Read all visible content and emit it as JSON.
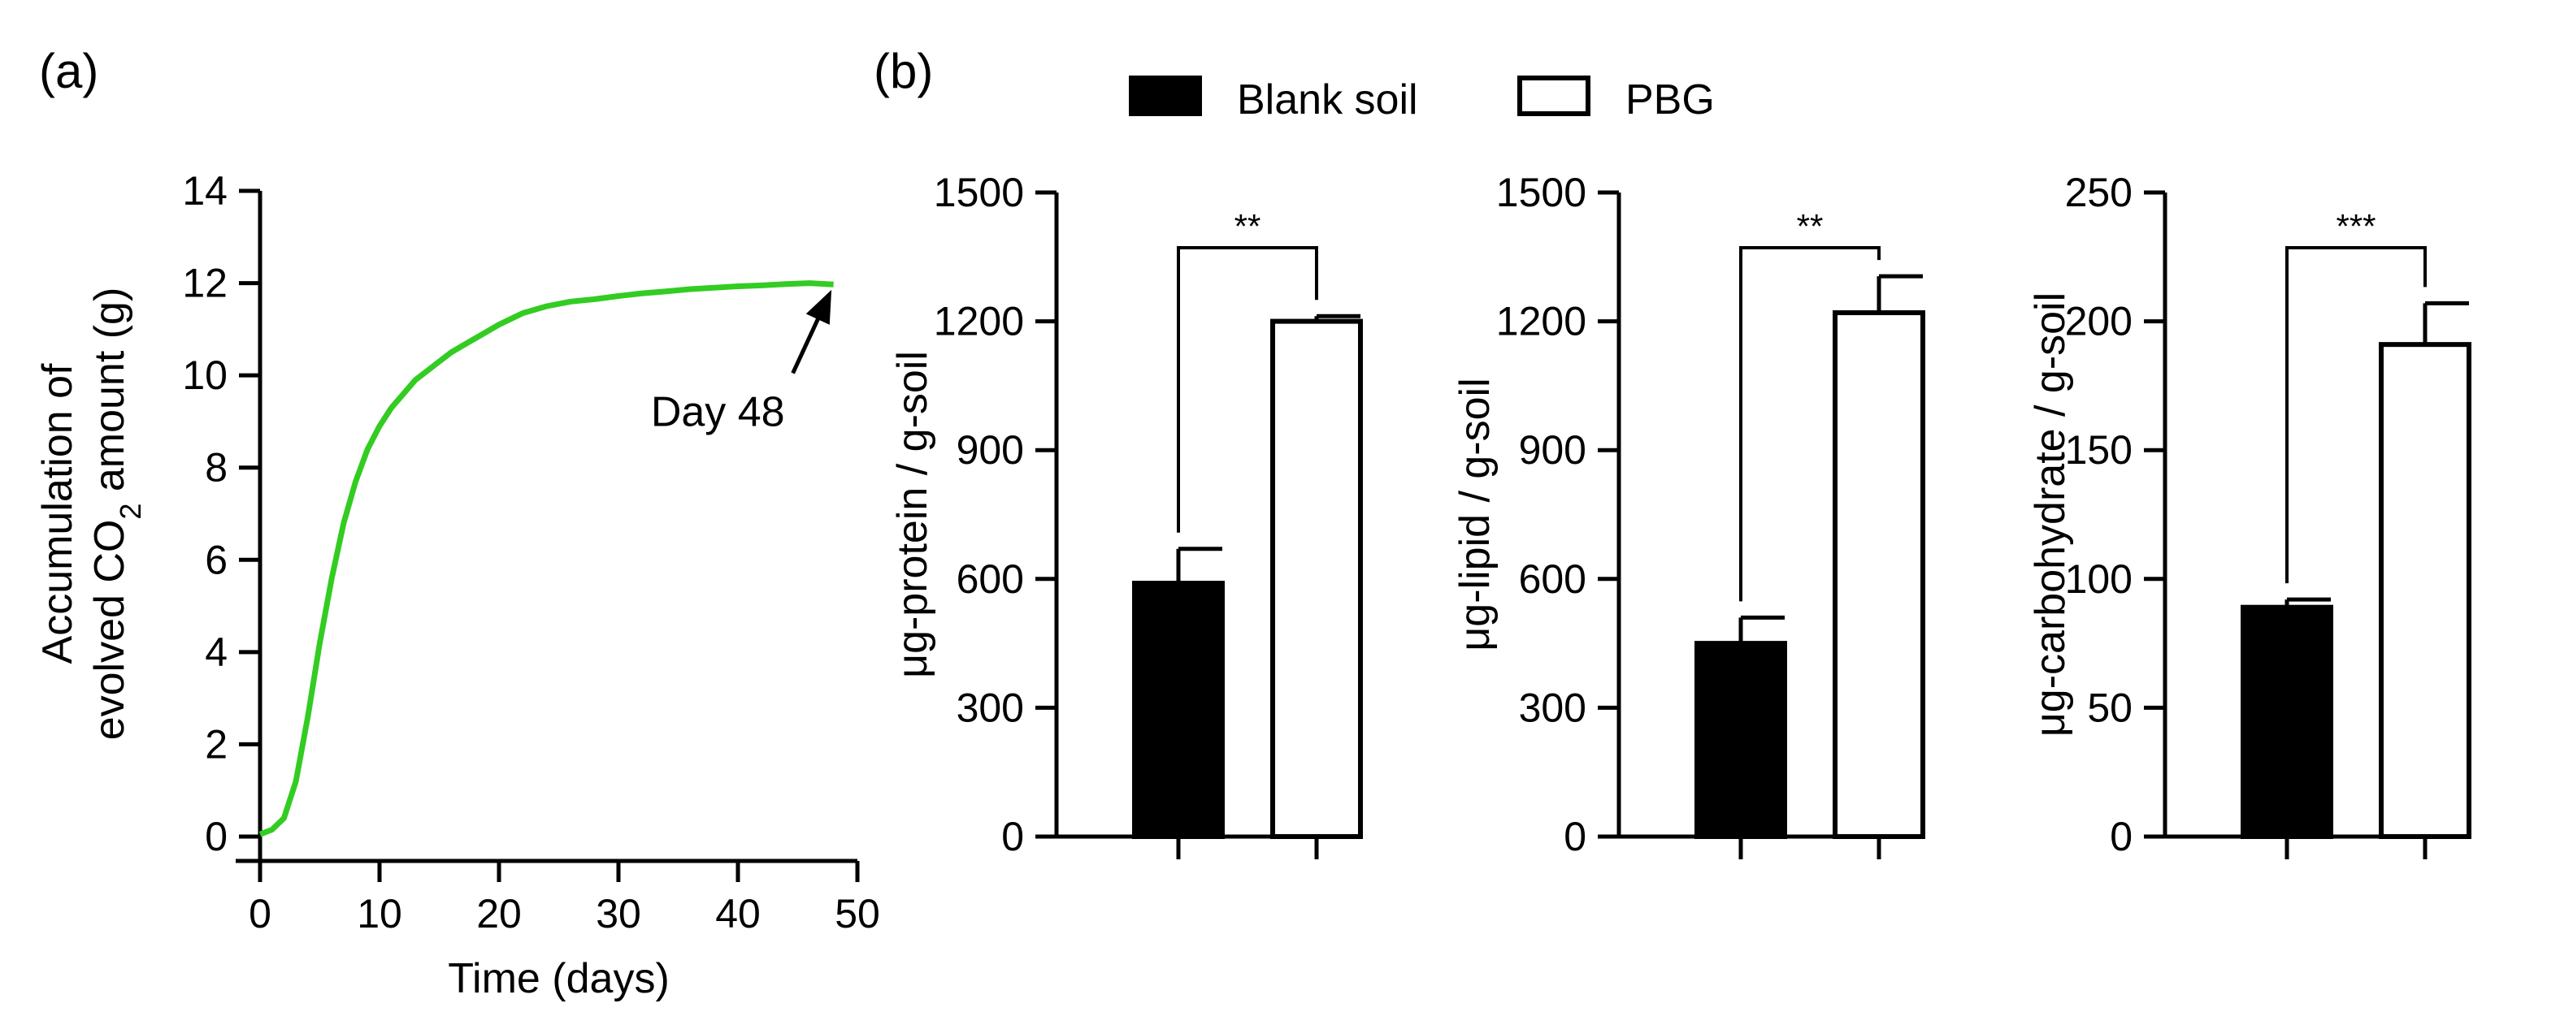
{
  "panel_labels": {
    "a": "(a)",
    "b": "(b)"
  },
  "legend": {
    "items": [
      {
        "label": "Blank soil",
        "fill": "#000000"
      },
      {
        "label": "PBG",
        "fill": "#ffffff"
      }
    ]
  },
  "colors": {
    "line": "#33cc22",
    "axis": "#000000"
  },
  "chart_data": [
    {
      "type": "line",
      "panel": "(a)",
      "xlabel": "Time (days)",
      "ylabel_line1": "Accumulation of",
      "ylabel_line2_pre": "evolved CO",
      "ylabel_line2_sub": "2",
      "ylabel_line2_post": " amount (g)",
      "xlim": [
        0,
        50
      ],
      "ylim": [
        0,
        14
      ],
      "xticks": [
        0,
        10,
        20,
        30,
        40,
        50
      ],
      "yticks": [
        0,
        2,
        4,
        6,
        8,
        10,
        12,
        14
      ],
      "series": [
        {
          "x": [
            0,
            1,
            2,
            3,
            4,
            5,
            6,
            7,
            8,
            9,
            10,
            11,
            12,
            13,
            14,
            15,
            16,
            17,
            18,
            20,
            22,
            24,
            26,
            28,
            30,
            32,
            34,
            36,
            38,
            40,
            42,
            44,
            46,
            48
          ],
          "y": [
            0.05,
            0.15,
            0.4,
            1.2,
            2.6,
            4.2,
            5.6,
            6.8,
            7.7,
            8.4,
            8.9,
            9.3,
            9.6,
            9.9,
            10.1,
            10.3,
            10.5,
            10.65,
            10.8,
            11.1,
            11.35,
            11.5,
            11.6,
            11.65,
            11.72,
            11.78,
            11.82,
            11.87,
            11.9,
            11.93,
            11.95,
            11.98,
            12.0,
            11.97
          ]
        }
      ],
      "annotation": {
        "text": "Day 48",
        "x": 48,
        "y": 11.95
      }
    },
    {
      "type": "bar",
      "panel": "(b)",
      "ylabel": "μg-protein / g-soil",
      "ylim": [
        0,
        1500
      ],
      "yticks": [
        0,
        300,
        600,
        900,
        1200,
        1500
      ],
      "categories": [
        "Blank soil",
        "PBG"
      ],
      "values": [
        590,
        1200
      ],
      "errors": [
        80,
        12
      ],
      "significance": "**"
    },
    {
      "type": "bar",
      "panel": "(b)",
      "ylabel": "μg-lipid / g-soil",
      "ylim": [
        0,
        1500
      ],
      "yticks": [
        0,
        300,
        600,
        900,
        1200,
        1500
      ],
      "categories": [
        "Blank soil",
        "PBG"
      ],
      "values": [
        450,
        1220
      ],
      "errors": [
        60,
        85
      ],
      "significance": "**"
    },
    {
      "type": "bar",
      "panel": "(b)",
      "ylabel": "μg-carbohydrate / g-soil",
      "ylim": [
        0,
        250
      ],
      "yticks": [
        0,
        50,
        100,
        150,
        200,
        250
      ],
      "categories": [
        "Blank soil",
        "PBG"
      ],
      "values": [
        89,
        191
      ],
      "errors": [
        3,
        16
      ],
      "significance": "***"
    }
  ]
}
